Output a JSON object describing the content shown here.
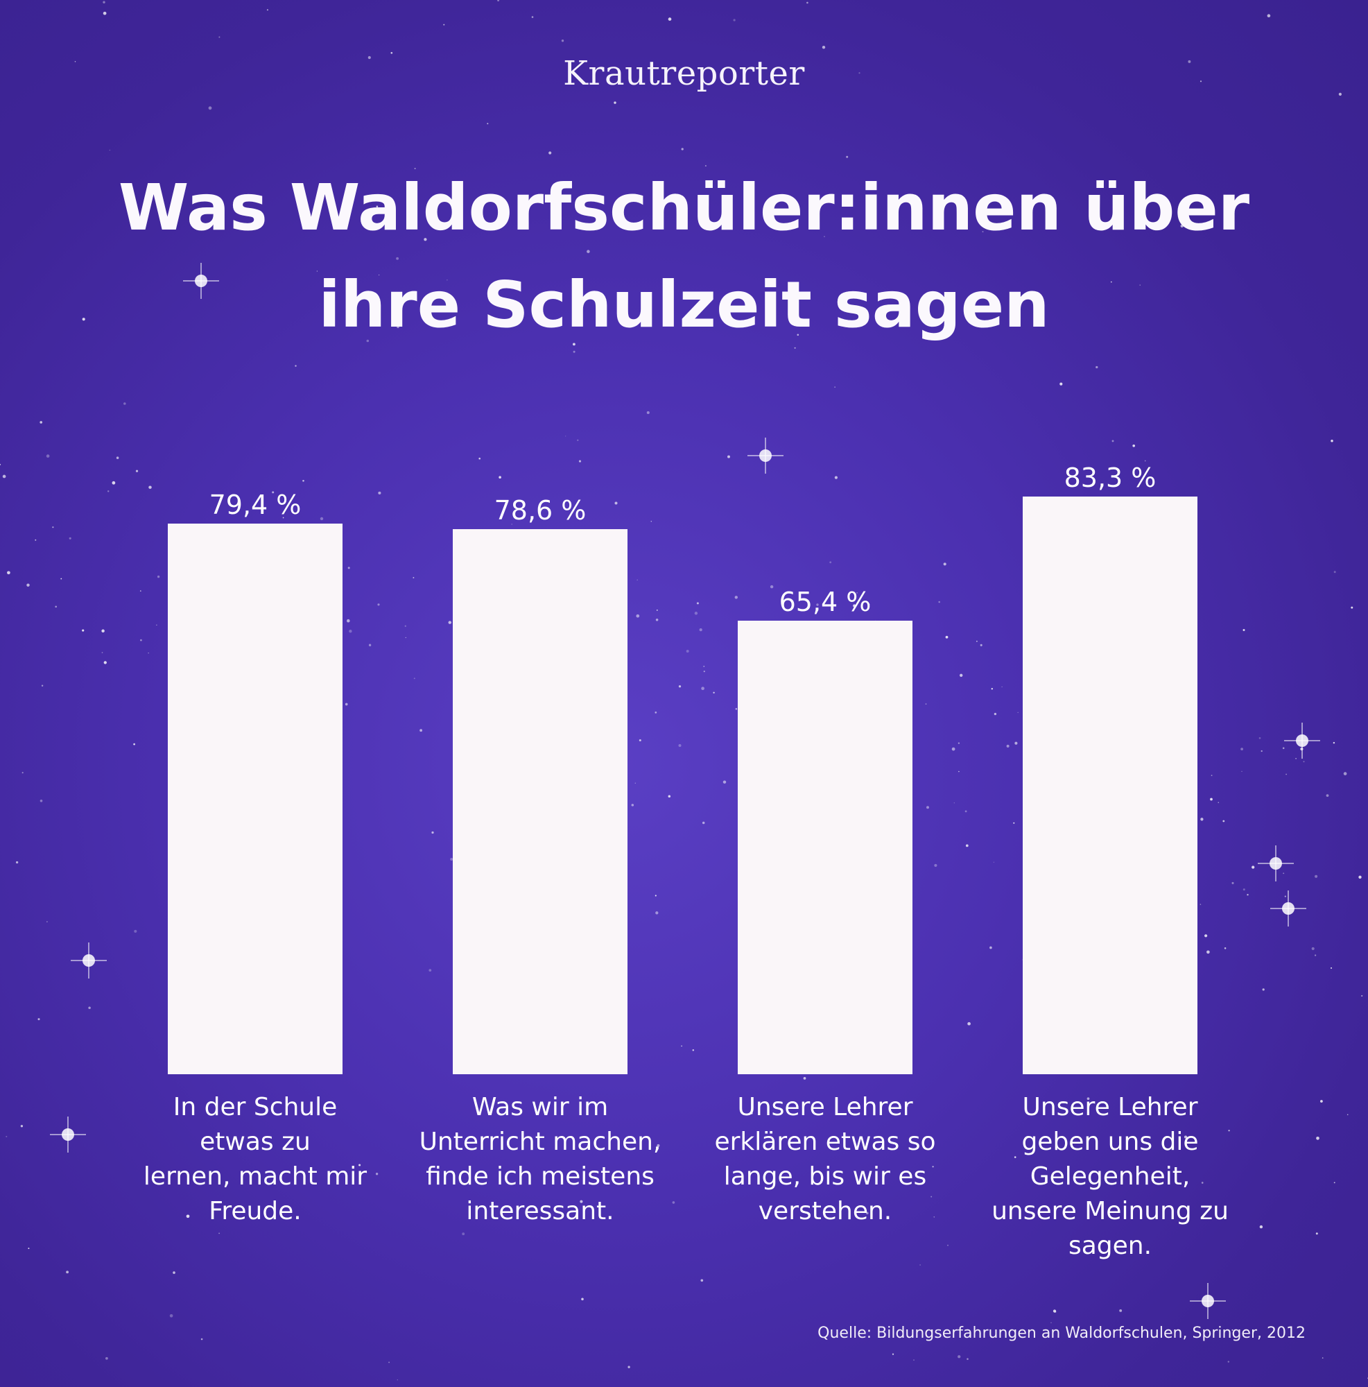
{
  "brand": "Krautreporter",
  "title": "Was Waldorfschüler:innen über ihre Schulzeit sagen",
  "source": "Quelle: Bildungserfahrungen an Waldorfschulen, Springer, 2012",
  "colors": {
    "background": "#4b30b0",
    "bar": "#faf6f9",
    "text": "#ffffff"
  },
  "chart_data": {
    "type": "bar",
    "categories": [
      [
        "In der Schule",
        "etwas zu",
        "lernen, macht mir",
        "Freude."
      ],
      [
        "Was wir im",
        "Unterricht machen,",
        "finde ich meistens",
        "interessant."
      ],
      [
        "Unsere Lehrer",
        "erklären etwas so",
        "lange, bis wir es",
        "verstehen."
      ],
      [
        "Unsere Lehrer",
        "geben uns die",
        "Gelegenheit,",
        "unsere Meinung zu",
        "sagen."
      ]
    ],
    "values": [
      79.4,
      78.6,
      65.4,
      83.3
    ],
    "value_labels": [
      "79,4 %",
      "78,6 %",
      "65,4 %",
      "83,3 %"
    ],
    "unit": "%",
    "ylim": [
      0,
      100
    ],
    "grid": false,
    "legend": "none"
  }
}
